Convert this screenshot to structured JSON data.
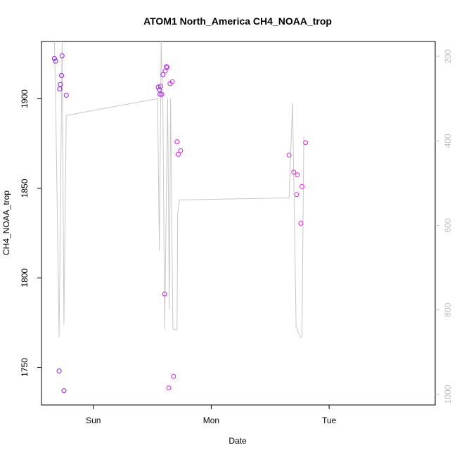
{
  "chart_data": {
    "type": "scatter",
    "title": "ATOM1 North_America CH4_NOAA_trop",
    "xlabel": "Date",
    "ylabel": "CH4_NOAA_trop",
    "xlim": [
      -0.44,
      2.9
    ],
    "ylim": [
      1729,
      1932
    ],
    "y_ticks": [
      1750,
      1800,
      1850,
      1900
    ],
    "x_ticks": [
      {
        "value": 0,
        "label": "Sun"
      },
      {
        "value": 1,
        "label": "Mon"
      },
      {
        "value": 2,
        "label": "Tue"
      }
    ],
    "y2_ticks": [
      200,
      400,
      600,
      800,
      1000
    ],
    "y2lim": [
      1025,
      165
    ],
    "grid": false,
    "point_color_start": "#7a1fff",
    "point_color_end": "#ff1fe0",
    "line_color": "#c8c8c8",
    "axis_color": "#000000",
    "axis2_color": "#bdbdbd",
    "points": [
      {
        "x": -0.33,
        "y": 1922.5
      },
      {
        "x": -0.32,
        "y": 1921
      },
      {
        "x": -0.29,
        "y": 1748
      },
      {
        "x": -0.285,
        "y": 1905.5
      },
      {
        "x": -0.28,
        "y": 1908
      },
      {
        "x": -0.27,
        "y": 1913
      },
      {
        "x": -0.265,
        "y": 1924
      },
      {
        "x": -0.25,
        "y": 1737
      },
      {
        "x": -0.23,
        "y": 1902
      },
      {
        "x": 0.55,
        "y": 1906.5
      },
      {
        "x": 0.56,
        "y": 1905
      },
      {
        "x": 0.565,
        "y": 1902.5
      },
      {
        "x": 0.57,
        "y": 1907
      },
      {
        "x": 0.58,
        "y": 1902.5
      },
      {
        "x": 0.59,
        "y": 1913.5
      },
      {
        "x": 0.61,
        "y": 1915.5
      },
      {
        "x": 0.62,
        "y": 1918
      },
      {
        "x": 0.625,
        "y": 1917.5
      },
      {
        "x": 0.605,
        "y": 1791
      },
      {
        "x": 0.64,
        "y": 1738.5
      },
      {
        "x": 0.65,
        "y": 1908.5
      },
      {
        "x": 0.67,
        "y": 1909.5
      },
      {
        "x": 0.68,
        "y": 1745
      },
      {
        "x": 0.71,
        "y": 1876
      },
      {
        "x": 0.72,
        "y": 1869
      },
      {
        "x": 0.74,
        "y": 1871
      },
      {
        "x": 1.66,
        "y": 1868.5
      },
      {
        "x": 1.7,
        "y": 1859
      },
      {
        "x": 1.725,
        "y": 1846.5
      },
      {
        "x": 1.73,
        "y": 1857.5
      },
      {
        "x": 1.76,
        "y": 1830.5
      },
      {
        "x": 1.77,
        "y": 1851
      },
      {
        "x": 1.8,
        "y": 1875.5
      }
    ],
    "line_y2": [
      {
        "x": -0.33,
        "y": 40
      },
      {
        "x": -0.32,
        "y": 300
      },
      {
        "x": -0.29,
        "y": 865
      },
      {
        "x": -0.265,
        "y": 40
      },
      {
        "x": -0.25,
        "y": 835
      },
      {
        "x": -0.23,
        "y": 340
      },
      {
        "x": 0.545,
        "y": 300
      },
      {
        "x": 0.56,
        "y": 660
      },
      {
        "x": 0.575,
        "y": 40
      },
      {
        "x": 0.59,
        "y": 320
      },
      {
        "x": 0.605,
        "y": 845
      },
      {
        "x": 0.63,
        "y": 300
      },
      {
        "x": 0.645,
        "y": 800
      },
      {
        "x": 0.655,
        "y": 300
      },
      {
        "x": 0.675,
        "y": 845
      },
      {
        "x": 0.71,
        "y": 847
      },
      {
        "x": 0.715,
        "y": 575
      },
      {
        "x": 0.73,
        "y": 540
      },
      {
        "x": 1.66,
        "y": 535
      },
      {
        "x": 1.69,
        "y": 310
      },
      {
        "x": 1.72,
        "y": 840
      },
      {
        "x": 1.755,
        "y": 865
      },
      {
        "x": 1.77,
        "y": 865
      },
      {
        "x": 1.785,
        "y": 390
      }
    ]
  }
}
